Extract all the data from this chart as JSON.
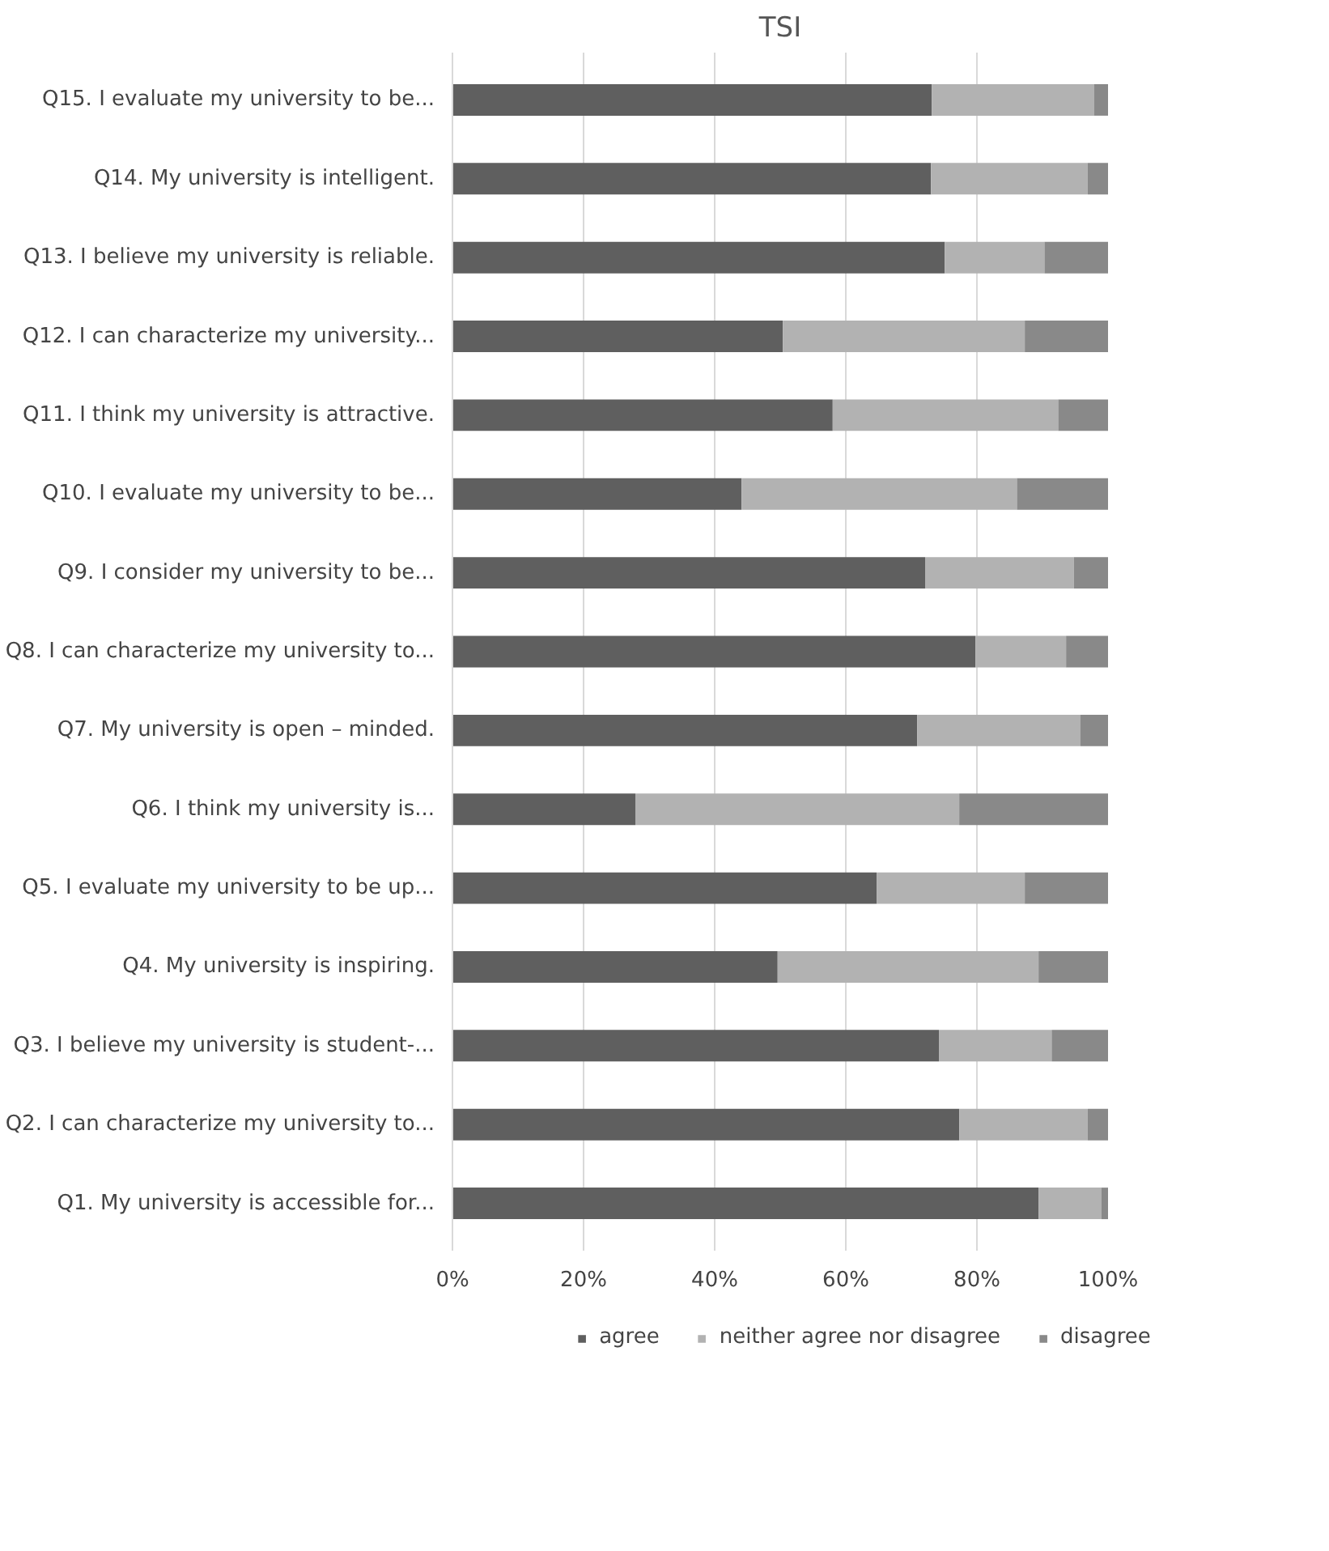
{
  "chart_data": {
    "type": "bar",
    "orientation": "horizontal",
    "stacked": true,
    "title": "TSI",
    "categories": [
      "Q15. I evaluate my university to be...",
      "Q14. My university is intelligent.",
      "Q13. I believe my university is reliable.",
      "Q12. I can characterize my university...",
      "Q11. I think my university is attractive.",
      "Q10. I evaluate my university to be...",
      "Q9. I consider my university to be...",
      "Q8. I can characterize my university to...",
      "Q7. My university is open – minded.",
      "Q6. I think my university is...",
      "Q5. I evaluate my university to be up...",
      "Q4. My university is inspiring.",
      "Q3. I believe my university is student-...",
      "Q2. I can characterize my university to...",
      "Q1. My university is accessible for..."
    ],
    "series": [
      {
        "name": "agree",
        "color": "#5f5f5f",
        "values": [
          73.1,
          73.0,
          75.1,
          50.4,
          58.0,
          44.1,
          72.1,
          79.8,
          70.9,
          27.9,
          64.7,
          49.6,
          74.2,
          77.3,
          89.4
        ]
      },
      {
        "name": "neither agree nor disagree",
        "color": "#b2b2b2",
        "values": [
          24.8,
          23.9,
          15.2,
          36.9,
          34.4,
          42.0,
          22.7,
          13.8,
          24.9,
          49.4,
          22.6,
          39.8,
          17.2,
          19.6,
          9.6
        ]
      },
      {
        "name": "disagree",
        "color": "#898989",
        "values": [
          2.1,
          3.1,
          9.7,
          12.7,
          7.6,
          13.9,
          5.2,
          6.4,
          4.2,
          22.7,
          12.7,
          10.6,
          8.6,
          3.1,
          1.0
        ]
      }
    ],
    "xlim": [
      0,
      100
    ],
    "xticks": [
      {
        "value": 0,
        "label": "0%"
      },
      {
        "value": 20,
        "label": "20%"
      },
      {
        "value": 40,
        "label": "40%"
      },
      {
        "value": 60,
        "label": "60%"
      },
      {
        "value": 80,
        "label": "80%"
      },
      {
        "value": 100,
        "label": "100%"
      }
    ],
    "grid": "x",
    "legend": "bottom"
  }
}
